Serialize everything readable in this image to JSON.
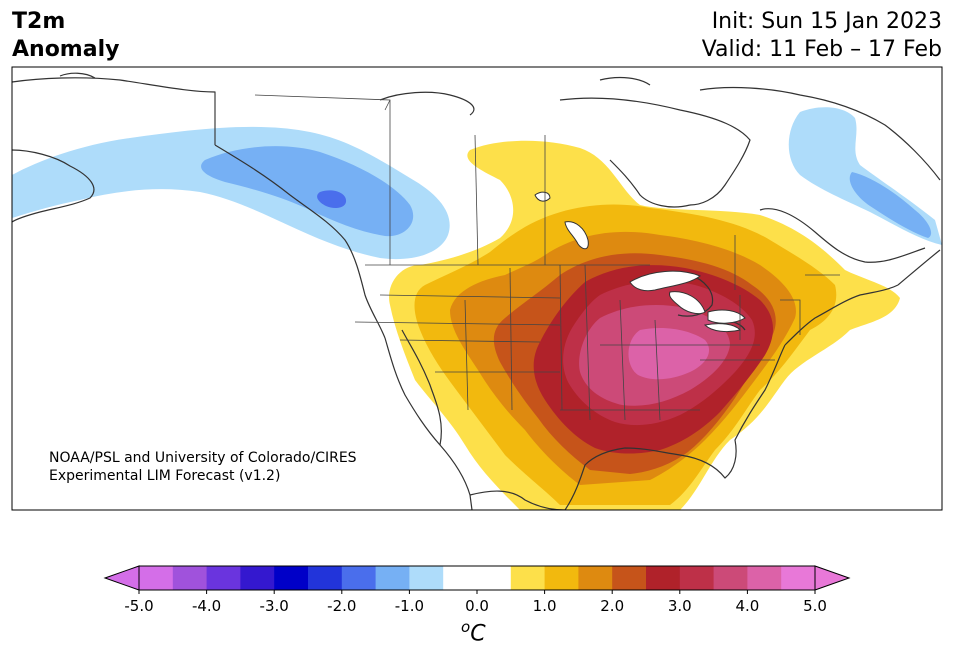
{
  "header": {
    "variable": "T2m",
    "subtitle": "Anomaly",
    "init": "Init: Sun 15 Jan 2023",
    "valid": "Valid: 11 Feb – 17 Feb"
  },
  "credit": {
    "line1": "NOAA/PSL and University of Colorado/CIRES",
    "line2": "Experimental LIM Forecast (v1.2)"
  },
  "colorbar": {
    "unit_main": "C",
    "unit_sup": "o",
    "ticks": [
      "-5.0",
      "-4.0",
      "-3.0",
      "-2.0",
      "-1.0",
      "0.0",
      "1.0",
      "2.0",
      "3.0",
      "4.0",
      "5.0"
    ],
    "colors": [
      "#d46ee8",
      "#a052dc",
      "#6a34de",
      "#3418cf",
      "#0000c8",
      "#2234da",
      "#4a6eec",
      "#76b0f4",
      "#aedcfa",
      "#ffffff",
      "#ffffff",
      "#fde04a",
      "#f2b90e",
      "#de8a10",
      "#c6541a",
      "#b0222a",
      "#be3048",
      "#cc4a78",
      "#dc62a8",
      "#e878d8"
    ],
    "under_color": "#d46ee8",
    "over_color": "#e878d8"
  },
  "map": {
    "land_color": "#ffffff",
    "ocean_color": "#ffffff",
    "coast_color": "#333333"
  }
}
